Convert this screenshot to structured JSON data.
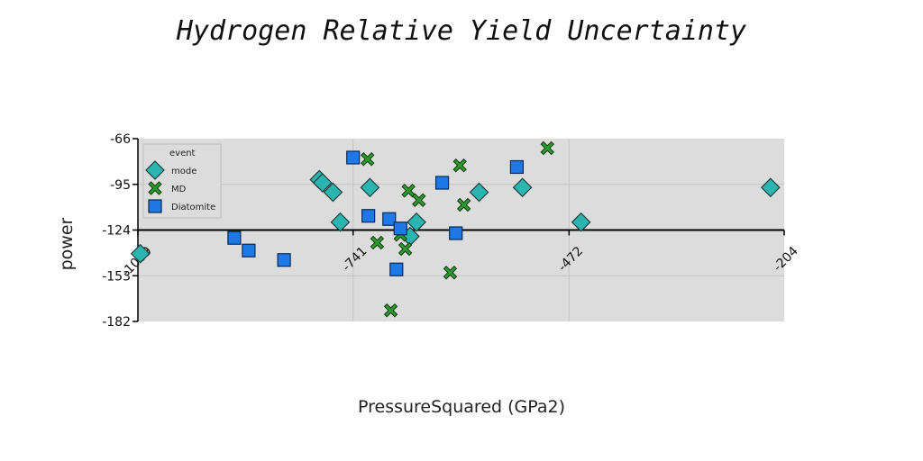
{
  "chart_data": {
    "type": "scatter",
    "title": "Hydrogen Relative Yield Uncertainty",
    "xlabel": "PressureSquared (GPa2)",
    "ylabel": "power",
    "xlim": [
      -1009,
      -204
    ],
    "ylim": [
      -182,
      -66
    ],
    "x_ticks": [
      "-1009",
      "-741",
      "-472",
      "-204"
    ],
    "y_ticks": [
      "-66",
      "-95",
      "-124",
      "-153",
      "-182"
    ],
    "grid": true,
    "background": "#dcdcdc",
    "legend": {
      "title": "event",
      "placement": "top-left",
      "entries": [
        "mode",
        "MD",
        "Diatomite"
      ]
    },
    "series": [
      {
        "name": "mode",
        "marker": "diamond",
        "color": "#2ab5b0",
        "points": [
          [
            -1006,
            -139
          ],
          [
            -783,
            -92
          ],
          [
            -779,
            -94
          ],
          [
            -766,
            -100
          ],
          [
            -757,
            -119
          ],
          [
            -720,
            -97
          ],
          [
            -670,
            -128
          ],
          [
            -662,
            -119
          ],
          [
            -584,
            -100
          ],
          [
            -530,
            -97
          ],
          [
            -457,
            -119
          ],
          [
            -221,
            -97
          ]
        ]
      },
      {
        "name": "MD",
        "marker": "x",
        "color": "#2e9a2e",
        "points": [
          [
            -723,
            -79
          ],
          [
            -672,
            -99
          ],
          [
            -659,
            -105
          ],
          [
            -711,
            -132
          ],
          [
            -682,
            -127
          ],
          [
            -676,
            -136
          ],
          [
            -620,
            -151
          ],
          [
            -603,
            -108
          ],
          [
            -608,
            -83
          ],
          [
            -499,
            -72
          ],
          [
            -694,
            -175
          ]
        ]
      },
      {
        "name": "Diatomite",
        "marker": "square",
        "color": "#1e78e6",
        "points": [
          [
            -889,
            -129
          ],
          [
            -871,
            -137
          ],
          [
            -827,
            -143
          ],
          [
            -741,
            -78
          ],
          [
            -722,
            -115
          ],
          [
            -696,
            -117
          ],
          [
            -682,
            -123
          ],
          [
            -687,
            -149
          ],
          [
            -630,
            -94
          ],
          [
            -613,
            -126
          ],
          [
            -537,
            -84
          ]
        ]
      }
    ]
  }
}
